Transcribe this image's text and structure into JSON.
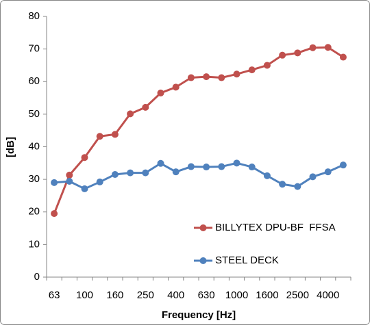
{
  "chart_data": {
    "type": "line",
    "x_label": "Frequency [Hz]",
    "y_label": "[dB]",
    "categories": [
      "63",
      null,
      "100",
      null,
      "160",
      null,
      "250",
      null,
      "400",
      null,
      "630",
      null,
      "1000",
      null,
      "1600",
      null,
      "2500",
      null,
      "4000",
      null
    ],
    "series": [
      {
        "name": "BILLYTEX DPU-BF  FFSA",
        "color": "#c0504d",
        "values": [
          19.5,
          31.3,
          36.7,
          43.2,
          43.8,
          50.1,
          52.1,
          56.5,
          58.3,
          61.2,
          61.5,
          61.2,
          62.3,
          63.6,
          65.0,
          68.1,
          68.8,
          70.4,
          70.5,
          67.5
        ]
      },
      {
        "name": "STEEL DECK",
        "color": "#4f81bd",
        "values": [
          29.0,
          29.4,
          27.1,
          29.2,
          31.5,
          32.0,
          32.0,
          34.9,
          32.3,
          33.9,
          33.8,
          33.9,
          35.0,
          33.8,
          31.1,
          28.5,
          27.8,
          30.8,
          32.3,
          34.4
        ]
      }
    ],
    "ylim": [
      0,
      80
    ],
    "yticks": [
      0,
      10,
      20,
      30,
      40,
      50,
      60,
      70,
      80
    ],
    "grid": false,
    "legend": "lower right"
  }
}
